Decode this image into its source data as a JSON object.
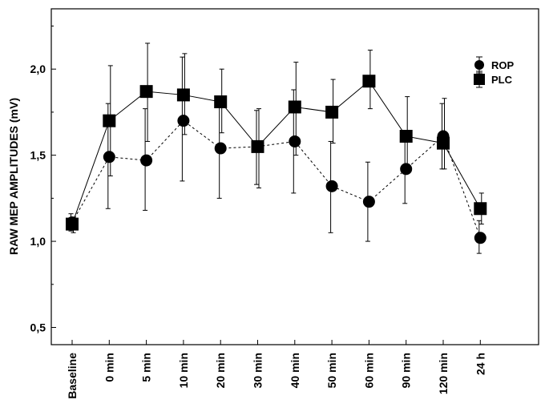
{
  "chart_data": {
    "type": "line",
    "title": "",
    "xlabel": "",
    "ylabel": "RAW  MEP AMPLITUDES (mV)",
    "ylim": [
      0.4,
      2.35
    ],
    "yticks": [
      0.5,
      1.0,
      1.5,
      2.0
    ],
    "ytick_labels": [
      "0,5",
      "1,0",
      "1,5",
      "2,0"
    ],
    "grid": false,
    "legend_position": "top-right",
    "categories": [
      "Baseline",
      "0 min",
      "5 min",
      "10 min",
      "20 min",
      "30 min",
      "40 min",
      "50 min",
      "60 min",
      "90 min",
      "120 min",
      "24 h"
    ],
    "series": [
      {
        "name": "ROP",
        "marker": "circle",
        "line_style": "dashed",
        "color": "#000000",
        "values": [
          1.11,
          1.49,
          1.47,
          1.7,
          1.54,
          1.55,
          1.58,
          1.32,
          1.23,
          1.42,
          1.61,
          1.02
        ],
        "err_low": [
          1.06,
          1.19,
          1.18,
          1.35,
          1.25,
          1.33,
          1.28,
          1.05,
          1.0,
          1.22,
          1.42,
          0.93
        ],
        "err_high": [
          1.16,
          1.8,
          1.77,
          2.07,
          1.83,
          1.76,
          1.88,
          1.58,
          1.46,
          1.62,
          1.8,
          1.12
        ]
      },
      {
        "name": "PLC",
        "marker": "square",
        "line_style": "solid",
        "color": "#000000",
        "values": [
          1.1,
          1.7,
          1.87,
          1.85,
          1.81,
          1.55,
          1.78,
          1.75,
          1.93,
          1.61,
          1.57,
          1.19
        ],
        "err_low": [
          1.05,
          1.38,
          1.58,
          1.62,
          1.63,
          1.31,
          1.5,
          1.57,
          1.77,
          1.42,
          1.42,
          1.1
        ],
        "err_high": [
          1.14,
          2.02,
          2.15,
          2.09,
          2.0,
          1.77,
          2.04,
          1.94,
          2.11,
          1.84,
          1.83,
          1.28
        ]
      }
    ]
  }
}
